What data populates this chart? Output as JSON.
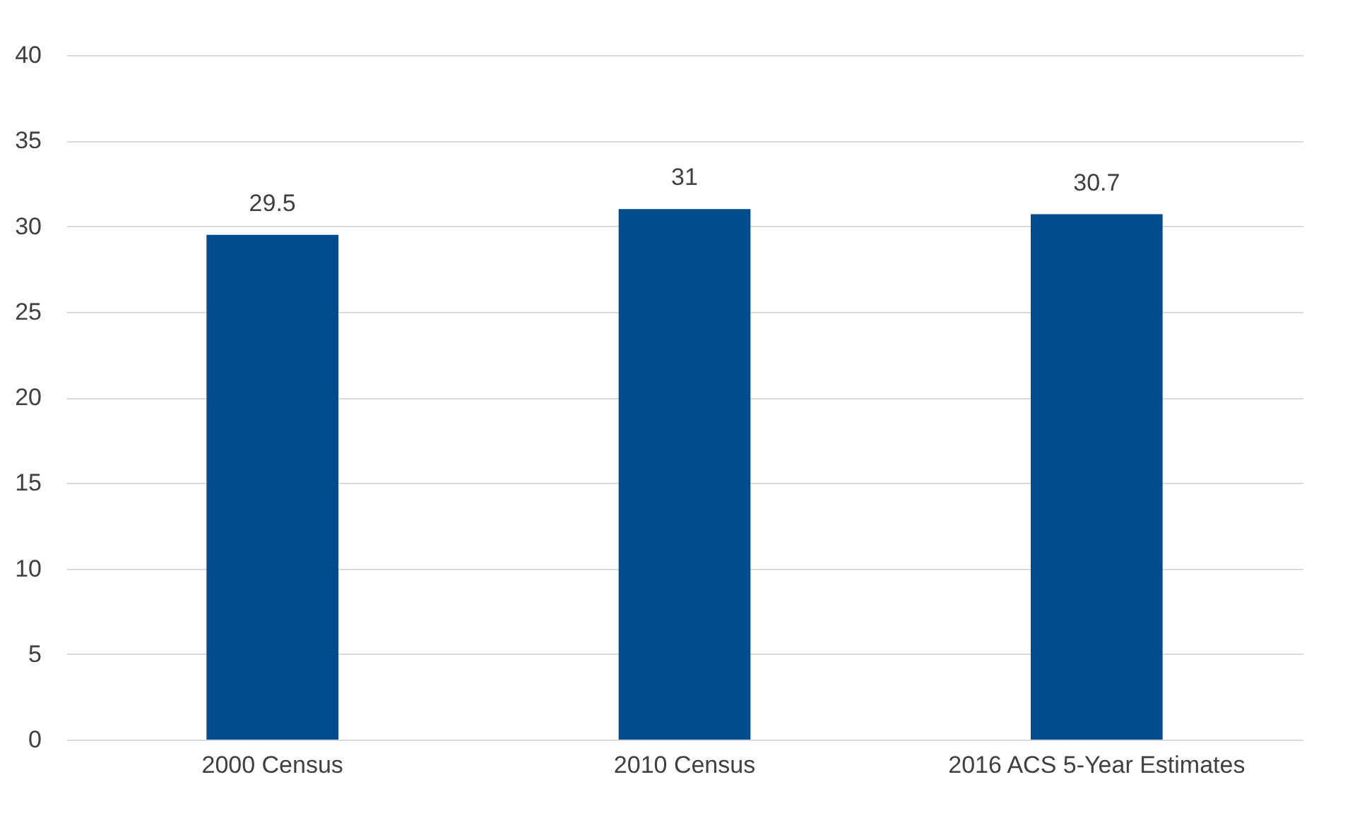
{
  "chart_data": {
    "type": "bar",
    "categories": [
      "2000 Census",
      "2010 Census",
      "2016 ACS 5-Year Estimates"
    ],
    "values": [
      29.5,
      31,
      30.7
    ],
    "color": "#004c8c",
    "ylim": [
      0,
      40
    ],
    "yticks": [
      0,
      5,
      10,
      15,
      20,
      25,
      30,
      35,
      40
    ],
    "grid": "y",
    "data_labels": true
  }
}
